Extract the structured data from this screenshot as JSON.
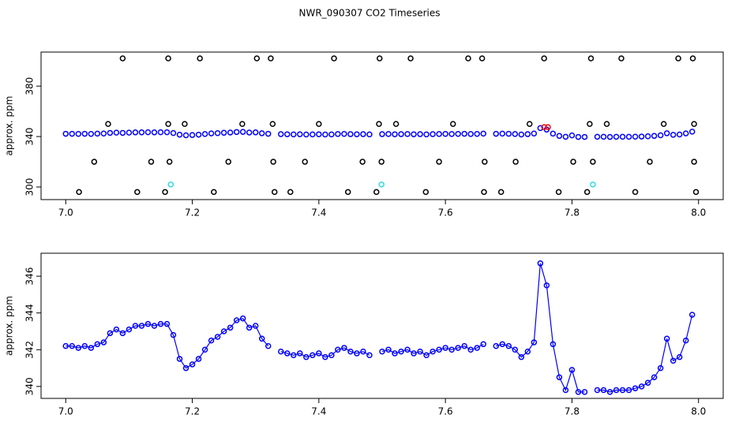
{
  "title": "NWR_090307  CO2 Timeseries",
  "chart_data": [
    {
      "type": "scatter",
      "ylabel": "approx. ppm",
      "xlim": [
        6.961,
        8.039
      ],
      "ylim": [
        290,
        407
      ],
      "xticks": [
        {
          "value": 7,
          "label": "7.0"
        },
        7.2,
        7.4,
        7.6,
        7.8,
        {
          "value": 8,
          "label": "8.0"
        }
      ],
      "yticks": [
        300,
        340,
        380
      ],
      "series": [
        {
          "color": "#0000ff",
          "x": [
            7.0,
            7.01,
            7.02,
            7.03,
            7.04,
            7.05,
            7.06,
            7.07,
            7.08,
            7.09,
            7.1,
            7.11,
            7.12,
            7.13,
            7.14,
            7.15,
            7.16,
            7.17,
            7.18,
            7.19,
            7.2,
            7.21,
            7.22,
            7.23,
            7.24,
            7.25,
            7.26,
            7.27,
            7.28,
            7.29,
            7.3,
            7.31,
            7.32,
            7.33,
            7.34,
            7.35,
            7.36,
            7.37,
            7.38,
            7.39,
            7.4,
            7.41,
            7.42,
            7.43,
            7.44,
            7.45,
            7.46,
            7.47,
            7.48,
            7.49,
            7.5,
            7.51,
            7.52,
            7.53,
            7.54,
            7.55,
            7.56,
            7.57,
            7.58,
            7.59,
            7.6,
            7.61,
            7.62,
            7.63,
            7.64,
            7.65,
            7.66,
            7.67,
            7.68,
            7.69,
            7.7,
            7.71,
            7.72,
            7.73,
            7.74,
            7.75,
            7.76,
            7.77,
            7.78,
            7.79,
            7.8,
            7.81,
            7.82,
            7.83,
            7.84,
            7.85,
            7.86,
            7.87,
            7.88,
            7.89,
            7.9,
            7.91,
            7.92,
            7.93,
            7.94,
            7.95,
            7.96,
            7.97,
            7.98,
            7.99
          ],
          "values": [
            342.2,
            342.2,
            342.1,
            342.2,
            342.1,
            342.3,
            342.4,
            342.9,
            343.1,
            342.9,
            343.1,
            343.3,
            343.3,
            343.4,
            343.3,
            343.4,
            343.4,
            342.8,
            341.5,
            341.0,
            341.2,
            341.5,
            342.0,
            342.5,
            342.7,
            343.0,
            343.2,
            343.6,
            343.7,
            343.2,
            343.3,
            342.6,
            342.2,
            null,
            341.9,
            341.8,
            341.7,
            341.8,
            341.6,
            341.7,
            341.8,
            341.6,
            341.7,
            342.0,
            342.1,
            341.9,
            341.8,
            341.9,
            341.7,
            null,
            341.9,
            342.0,
            341.8,
            341.9,
            342.0,
            341.8,
            341.9,
            341.7,
            341.9,
            342.0,
            342.1,
            342.0,
            342.1,
            342.2,
            342.0,
            342.1,
            342.3,
            null,
            342.2,
            342.3,
            342.2,
            342.0,
            341.6,
            341.9,
            342.4,
            346.7,
            345.5,
            342.3,
            340.5,
            339.8,
            340.9,
            339.7,
            339.7,
            null,
            339.8,
            339.8,
            339.7,
            339.8,
            339.8,
            339.8,
            339.9,
            340.0,
            340.2,
            340.5,
            341.0,
            342.6,
            341.4,
            341.6,
            342.5,
            343.9
          ]
        },
        {
          "color": "#000000",
          "x": [
            7.021,
            7.045,
            7.067,
            7.09,
            7.113,
            7.135,
            7.157,
            7.162,
            7.162,
            7.164,
            7.188,
            7.212,
            7.234,
            7.257,
            7.279,
            7.302,
            7.324,
            7.327,
            7.328,
            7.33,
            7.355,
            7.378,
            7.4,
            7.424,
            7.446,
            7.469,
            7.491,
            7.495,
            7.496,
            7.499,
            7.522,
            7.545,
            7.569,
            7.59,
            7.612,
            7.636,
            7.658,
            7.661,
            7.662,
            7.688,
            7.711,
            7.733,
            7.756,
            7.779,
            7.802,
            7.824,
            7.828,
            7.83,
            7.833,
            7.855,
            7.878,
            7.9,
            7.923,
            7.945,
            7.968,
            7.991,
            7.993,
            7.993,
            7.996
          ],
          "values": [
            296,
            320,
            350,
            402,
            296,
            320,
            296,
            350,
            402,
            320,
            350,
            402,
            296,
            320,
            350,
            402,
            402,
            350,
            320,
            296,
            296,
            320,
            350,
            402,
            296,
            320,
            296,
            350,
            402,
            320,
            350,
            402,
            296,
            320,
            350,
            402,
            402,
            296,
            320,
            296,
            320,
            350,
            402,
            296,
            320,
            296,
            350,
            402,
            320,
            350,
            402,
            296,
            320,
            350,
            402,
            402,
            350,
            320,
            296
          ]
        },
        {
          "color": "#33dddd",
          "x": [
            7.166,
            7.499,
            7.833
          ],
          "values": [
            302,
            302,
            302
          ]
        },
        {
          "color": "#ff0000",
          "x": [
            7.756,
            7.762
          ],
          "values": [
            347.5,
            347.5
          ]
        }
      ]
    },
    {
      "type": "line",
      "ylabel": "approx. ppm",
      "xlim": [
        6.961,
        8.039
      ],
      "ylim": [
        339.35,
        347.25
      ],
      "xticks": [
        {
          "value": 7,
          "label": "7.0"
        },
        7.2,
        7.4,
        7.6,
        7.8,
        {
          "value": 8,
          "label": "8.0"
        }
      ],
      "yticks": [
        340,
        342,
        344,
        346
      ],
      "series": [
        {
          "color": "#0000ff",
          "x": [
            7.0,
            7.01,
            7.02,
            7.03,
            7.04,
            7.05,
            7.06,
            7.07,
            7.08,
            7.09,
            7.1,
            7.11,
            7.12,
            7.13,
            7.14,
            7.15,
            7.16,
            7.17,
            7.18,
            7.19,
            7.2,
            7.21,
            7.22,
            7.23,
            7.24,
            7.25,
            7.26,
            7.27,
            7.28,
            7.29,
            7.3,
            7.31,
            7.32,
            7.33,
            7.34,
            7.35,
            7.36,
            7.37,
            7.38,
            7.39,
            7.4,
            7.41,
            7.42,
            7.43,
            7.44,
            7.45,
            7.46,
            7.47,
            7.48,
            7.49,
            7.5,
            7.51,
            7.52,
            7.53,
            7.54,
            7.55,
            7.56,
            7.57,
            7.58,
            7.59,
            7.6,
            7.61,
            7.62,
            7.63,
            7.64,
            7.65,
            7.66,
            7.67,
            7.68,
            7.69,
            7.7,
            7.71,
            7.72,
            7.73,
            7.74,
            7.75,
            7.76,
            7.77,
            7.78,
            7.79,
            7.8,
            7.81,
            7.82,
            7.83,
            7.84,
            7.85,
            7.86,
            7.87,
            7.88,
            7.89,
            7.9,
            7.91,
            7.92,
            7.93,
            7.94,
            7.95,
            7.96,
            7.97,
            7.98,
            7.99
          ],
          "values": [
            342.2,
            342.2,
            342.1,
            342.2,
            342.1,
            342.3,
            342.4,
            342.9,
            343.1,
            342.9,
            343.1,
            343.3,
            343.3,
            343.4,
            343.3,
            343.4,
            343.4,
            342.8,
            341.5,
            341.0,
            341.2,
            341.5,
            342.0,
            342.5,
            342.7,
            343.0,
            343.2,
            343.6,
            343.7,
            343.2,
            343.3,
            342.6,
            342.2,
            null,
            341.9,
            341.8,
            341.7,
            341.8,
            341.6,
            341.7,
            341.8,
            341.6,
            341.7,
            342.0,
            342.1,
            341.9,
            341.8,
            341.9,
            341.7,
            null,
            341.9,
            342.0,
            341.8,
            341.9,
            342.0,
            341.8,
            341.9,
            341.7,
            341.9,
            342.0,
            342.1,
            342.0,
            342.1,
            342.2,
            342.0,
            342.1,
            342.3,
            null,
            342.2,
            342.3,
            342.2,
            342.0,
            341.6,
            341.9,
            342.4,
            346.7,
            345.5,
            342.3,
            340.5,
            339.8,
            340.9,
            339.7,
            339.7,
            null,
            339.8,
            339.8,
            339.7,
            339.8,
            339.8,
            339.8,
            339.9,
            340.0,
            340.2,
            340.5,
            341.0,
            342.6,
            341.4,
            341.6,
            342.5,
            343.9
          ]
        }
      ]
    }
  ]
}
